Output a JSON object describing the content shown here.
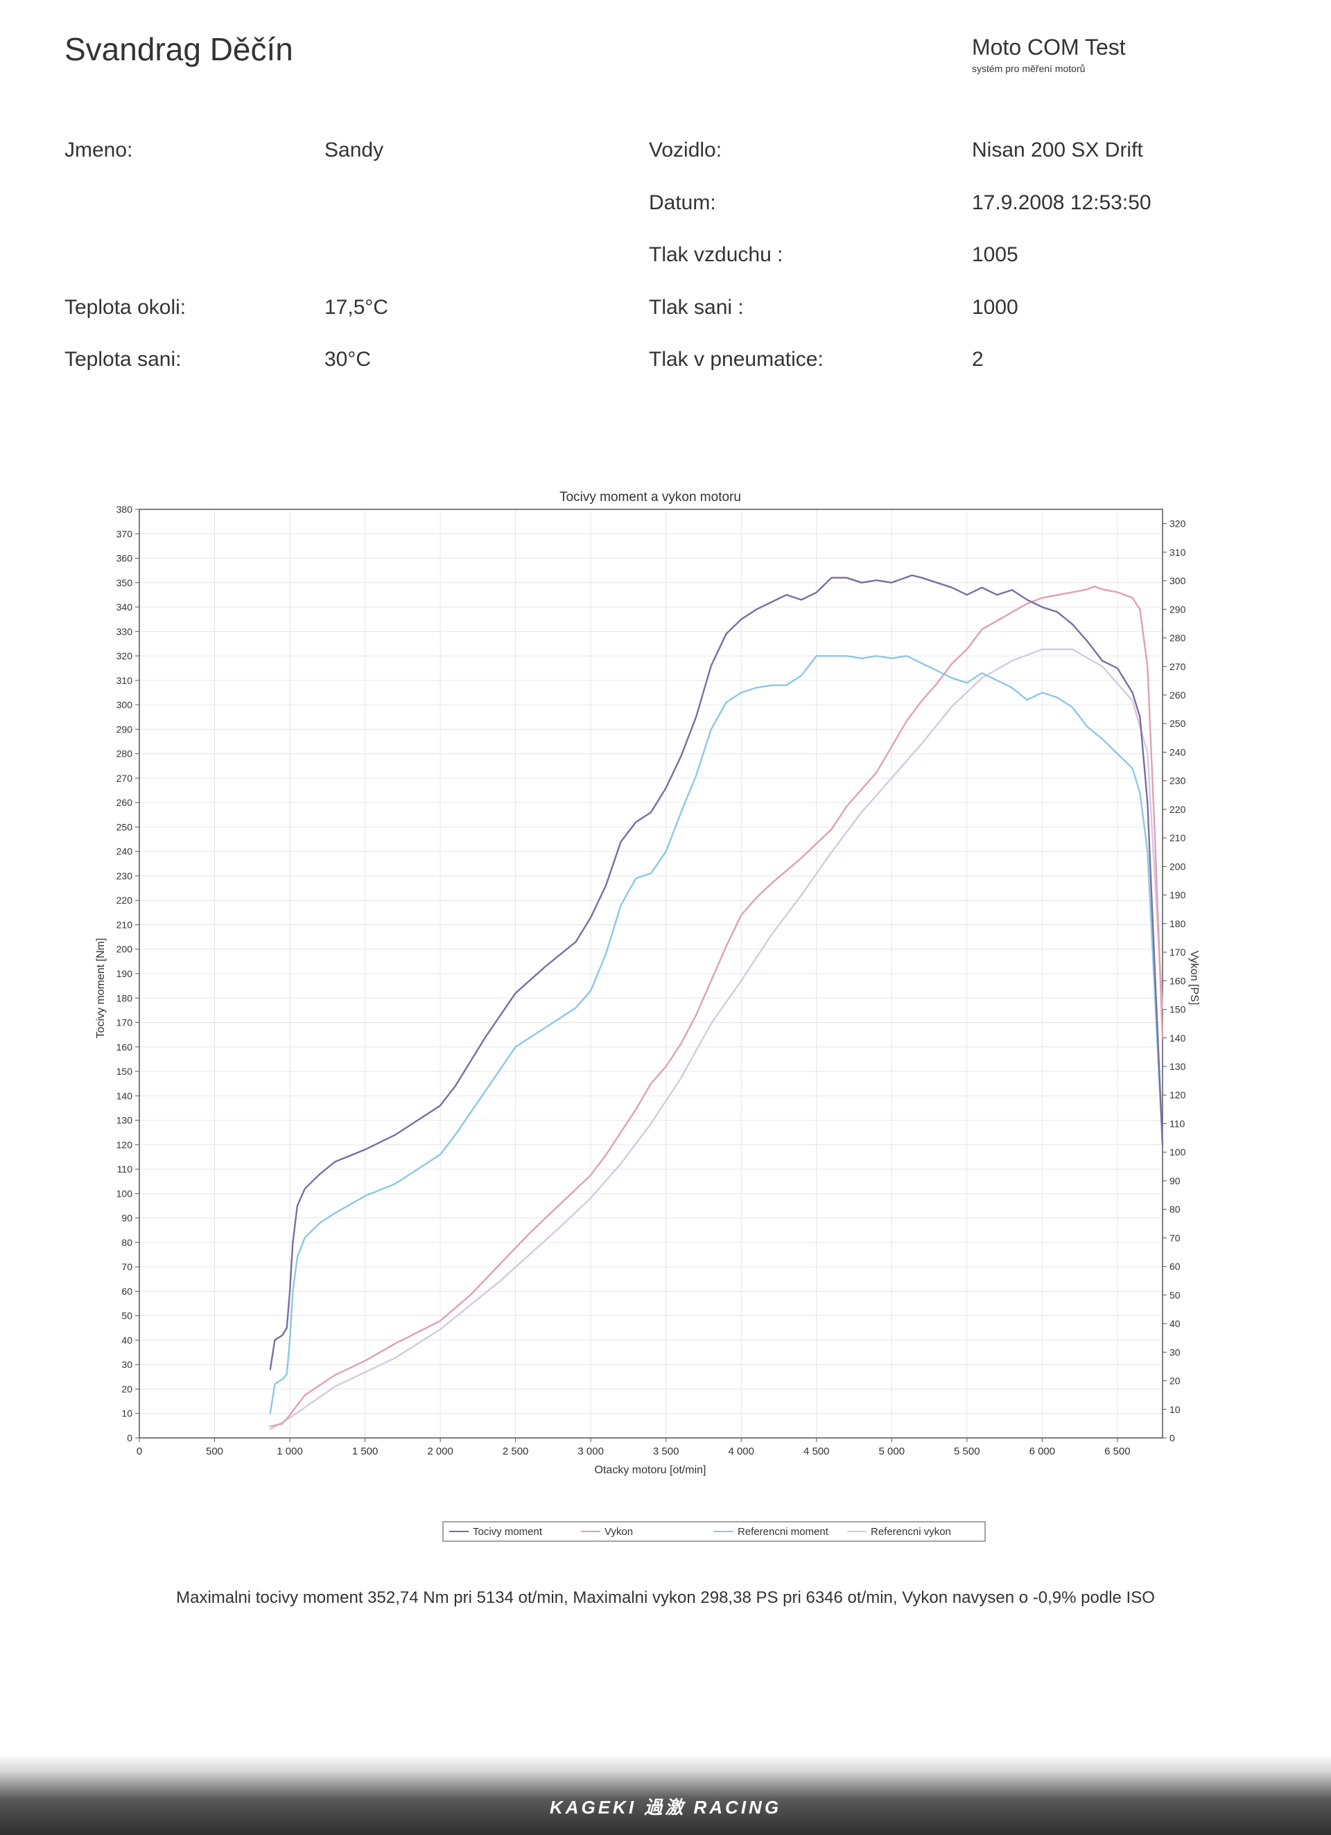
{
  "header": {
    "title": "Svandrag Děčín",
    "brand": "Moto COM Test",
    "brand_sub": "systém pro měření motorů"
  },
  "fields": {
    "jmeno_label": "Jmeno:",
    "jmeno_value": "Sandy",
    "vozidlo_label": "Vozidlo:",
    "vozidlo_value": "Nisan 200 SX Drift",
    "datum_label": "Datum:",
    "datum_value": "17.9.2008 12:53:50",
    "tlak_vzduchu_label": "Tlak vzduchu :",
    "tlak_vzduchu_value": "1005",
    "teplota_okoli_label": "Teplota okoli:",
    "teplota_okoli_value": "17,5°C",
    "tlak_sani_label": "Tlak sani :",
    "tlak_sani_value": "1000",
    "teplota_sani_label": "Teplota sani:",
    "teplota_sani_value": "30°C",
    "tlak_pneu_label": "Tlak v pneumatice:",
    "tlak_pneu_value": "2"
  },
  "summary": "Maximalni tocivy moment 352,74 Nm pri 5134 ot/min,  Maximalni vykon 298,38 PS pri 6346 ot/min,  Vykon navysen o -0,9% podle ISO",
  "footer_logo": "KAGEKI 過激 RACING",
  "colors": {
    "torque": "#7a6ea0",
    "power": "#e0a0b4",
    "ref_torque": "#8cc8e4",
    "ref_power": "#d8c8e0",
    "grid": "#e6e6e6",
    "axis": "#555555"
  },
  "chart_data": {
    "type": "line",
    "title": "Tocivy moment a vykon motoru",
    "xlabel": "Otacky motoru [ot/min]",
    "ylabel": "Tocivy moment [Nm]",
    "y2label": "Vykon [PS]",
    "xlim": [
      0,
      6800
    ],
    "ylim": [
      0,
      380
    ],
    "y2lim": [
      0,
      325
    ],
    "x_ticks": [
      0,
      500,
      1000,
      1500,
      2000,
      2500,
      3000,
      3500,
      4000,
      4500,
      5000,
      5500,
      6000,
      6500
    ],
    "x_tick_labels": [
      "0",
      "500",
      "1 000",
      "1 500",
      "2 000",
      "2 500",
      "3 000",
      "3 500",
      "4 000",
      "4 500",
      "5 000",
      "5 500",
      "6 000",
      "6 500"
    ],
    "y_ticks": [
      0,
      10,
      20,
      30,
      40,
      50,
      60,
      70,
      80,
      90,
      100,
      110,
      120,
      130,
      140,
      150,
      160,
      170,
      180,
      190,
      200,
      210,
      220,
      230,
      240,
      250,
      260,
      270,
      280,
      290,
      300,
      310,
      320,
      330,
      340,
      350,
      360,
      370,
      380
    ],
    "y2_ticks": [
      0,
      10,
      20,
      30,
      40,
      50,
      60,
      70,
      80,
      90,
      100,
      110,
      120,
      130,
      140,
      150,
      160,
      170,
      180,
      190,
      200,
      210,
      220,
      230,
      240,
      250,
      260,
      270,
      280,
      290,
      300,
      310,
      320
    ],
    "grid": true,
    "legend_position": "bottom",
    "series": [
      {
        "name": "Tocivy moment",
        "axis": "left",
        "color_key": "torque",
        "x": [
          870,
          900,
          950,
          980,
          1000,
          1020,
          1050,
          1100,
          1200,
          1300,
          1500,
          1700,
          1900,
          2000,
          2100,
          2300,
          2500,
          2700,
          2900,
          3000,
          3100,
          3200,
          3300,
          3400,
          3500,
          3600,
          3700,
          3800,
          3900,
          4000,
          4100,
          4200,
          4300,
          4400,
          4500,
          4600,
          4700,
          4800,
          4900,
          5000,
          5134,
          5200,
          5300,
          5400,
          5500,
          5600,
          5700,
          5800,
          5900,
          6000,
          6100,
          6200,
          6300,
          6400,
          6500,
          6600,
          6650,
          6700,
          6750,
          6800
        ],
        "y": [
          28,
          40,
          42,
          45,
          60,
          80,
          95,
          102,
          108,
          113,
          118,
          124,
          132,
          136,
          144,
          164,
          182,
          193,
          203,
          213,
          226,
          244,
          252,
          256,
          266,
          279,
          295,
          316,
          329,
          335,
          339,
          342,
          345,
          343,
          346,
          352,
          352,
          350,
          351,
          350,
          353,
          352,
          350,
          348,
          345,
          348,
          345,
          347,
          343,
          340,
          338,
          333,
          326,
          318,
          315,
          305,
          295,
          260,
          190,
          120
        ]
      },
      {
        "name": "Vykon",
        "axis": "right",
        "color_key": "power",
        "x": [
          870,
          950,
          1000,
          1100,
          1300,
          1500,
          1700,
          2000,
          2200,
          2400,
          2600,
          2800,
          3000,
          3100,
          3200,
          3300,
          3400,
          3500,
          3600,
          3700,
          3800,
          3900,
          4000,
          4100,
          4200,
          4400,
          4500,
          4600,
          4700,
          4800,
          4900,
          5000,
          5100,
          5200,
          5300,
          5400,
          5500,
          5600,
          5700,
          5800,
          5900,
          6000,
          6100,
          6200,
          6300,
          6346,
          6400,
          6500,
          6600,
          6650,
          6700,
          6750,
          6800
        ],
        "y": [
          4,
          5,
          8,
          15,
          22,
          27,
          33,
          41,
          50,
          61,
          72,
          82,
          92,
          99,
          107,
          115,
          124,
          130,
          138,
          148,
          160,
          172,
          183,
          189,
          194,
          203,
          208,
          213,
          221,
          227,
          233,
          242,
          251,
          258,
          264,
          271,
          276,
          283,
          286,
          289,
          292,
          294,
          295,
          296,
          297,
          298,
          297,
          296,
          294,
          290,
          270,
          210,
          140
        ]
      },
      {
        "name": "Referencni moment",
        "axis": "left",
        "color_key": "ref_torque",
        "x": [
          870,
          900,
          950,
          980,
          1000,
          1020,
          1050,
          1100,
          1200,
          1300,
          1500,
          1700,
          1900,
          2000,
          2100,
          2300,
          2500,
          2700,
          2900,
          3000,
          3100,
          3200,
          3300,
          3400,
          3500,
          3600,
          3700,
          3800,
          3900,
          4000,
          4100,
          4200,
          4300,
          4400,
          4500,
          4600,
          4700,
          4800,
          4900,
          5000,
          5100,
          5200,
          5300,
          5400,
          5500,
          5600,
          5700,
          5800,
          5900,
          6000,
          6100,
          6200,
          6300,
          6400,
          6500,
          6600,
          6650,
          6700,
          6750,
          6800
        ],
        "y": [
          10,
          22,
          24,
          26,
          40,
          60,
          74,
          82,
          88,
          92,
          99,
          104,
          112,
          116,
          124,
          142,
          160,
          168,
          176,
          183,
          198,
          218,
          229,
          231,
          240,
          256,
          271,
          290,
          301,
          305,
          307,
          308,
          308,
          312,
          320,
          320,
          320,
          319,
          320,
          319,
          320,
          317,
          314,
          311,
          309,
          313,
          310,
          307,
          302,
          305,
          303,
          299,
          291,
          286,
          280,
          274,
          264,
          240,
          180,
          120
        ]
      },
      {
        "name": "Referencni vykon",
        "axis": "right",
        "color_key": "ref_power",
        "x": [
          870,
          1000,
          1300,
          1700,
          2000,
          2400,
          2800,
          3000,
          3200,
          3400,
          3600,
          3800,
          4000,
          4200,
          4400,
          4600,
          4800,
          5000,
          5200,
          5400,
          5600,
          5800,
          6000,
          6200,
          6400,
          6600,
          6700,
          6800
        ],
        "y": [
          3,
          7,
          18,
          28,
          38,
          55,
          74,
          84,
          96,
          110,
          126,
          145,
          160,
          176,
          190,
          205,
          219,
          231,
          243,
          256,
          266,
          272,
          276,
          276,
          270,
          258,
          240,
          150
        ]
      }
    ]
  }
}
